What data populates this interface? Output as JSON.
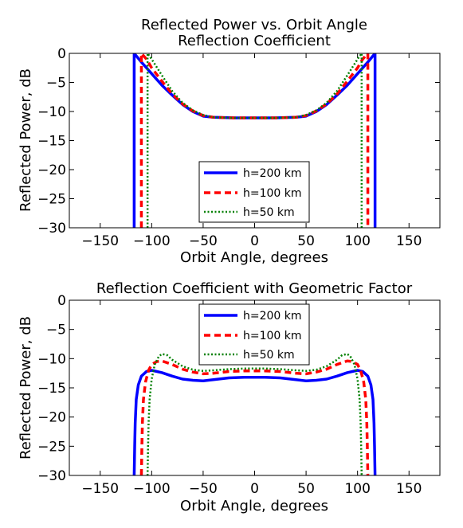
{
  "chart_data": [
    {
      "type": "line",
      "title": "Reflected Power vs. Orbit Angle",
      "subtitle": "Reflection Coefficient",
      "xlabel": "Orbit Angle, degrees",
      "ylabel": "Reflected Power, dB",
      "xlim": [
        -180,
        180
      ],
      "ylim": [
        -30,
        0
      ],
      "xticks": [
        -150,
        -100,
        -50,
        0,
        50,
        100,
        150
      ],
      "yticks": [
        0,
        -5,
        -10,
        -15,
        -20,
        -25,
        -30
      ],
      "grid": false,
      "legend_position": "lower-center",
      "series": [
        {
          "name": "h=200 km",
          "color": "#0000ff",
          "style": "solid",
          "points": [
            [
              -117,
              -30
            ],
            [
              -117,
              0
            ],
            [
              -110,
              -1.5
            ],
            [
              -100,
              -3.5
            ],
            [
              -90,
              -5.5
            ],
            [
              -80,
              -7.2
            ],
            [
              -70,
              -8.8
            ],
            [
              -60,
              -10.0
            ],
            [
              -50,
              -10.8
            ],
            [
              -40,
              -11.0
            ],
            [
              -20,
              -11.1
            ],
            [
              0,
              -11.1
            ],
            [
              20,
              -11.1
            ],
            [
              40,
              -11.0
            ],
            [
              50,
              -10.8
            ],
            [
              60,
              -10.0
            ],
            [
              70,
              -8.8
            ],
            [
              80,
              -7.2
            ],
            [
              90,
              -5.5
            ],
            [
              100,
              -3.5
            ],
            [
              110,
              -1.5
            ],
            [
              117,
              0
            ],
            [
              117,
              -30
            ]
          ]
        },
        {
          "name": "h=100 km",
          "color": "#ff0000",
          "style": "dashed",
          "points": [
            [
              -110,
              -30
            ],
            [
              -110,
              0
            ],
            [
              -105,
              -1.0
            ],
            [
              -100,
              -2.5
            ],
            [
              -90,
              -4.8
            ],
            [
              -80,
              -7.0
            ],
            [
              -70,
              -8.7
            ],
            [
              -60,
              -9.9
            ],
            [
              -50,
              -10.7
            ],
            [
              -40,
              -11.0
            ],
            [
              -20,
              -11.1
            ],
            [
              0,
              -11.1
            ],
            [
              20,
              -11.1
            ],
            [
              40,
              -11.0
            ],
            [
              50,
              -10.7
            ],
            [
              60,
              -9.9
            ],
            [
              70,
              -8.7
            ],
            [
              80,
              -7.0
            ],
            [
              90,
              -4.8
            ],
            [
              100,
              -2.5
            ],
            [
              105,
              -1.0
            ],
            [
              110,
              0
            ],
            [
              110,
              -30
            ]
          ]
        },
        {
          "name": "h=50 km",
          "color": "#008000",
          "style": "dotted",
          "points": [
            [
              -104,
              -30
            ],
            [
              -104,
              0
            ],
            [
              -100,
              -1.0
            ],
            [
              -90,
              -3.8
            ],
            [
              -80,
              -6.5
            ],
            [
              -70,
              -8.5
            ],
            [
              -60,
              -9.8
            ],
            [
              -50,
              -10.6
            ],
            [
              -40,
              -11.0
            ],
            [
              -20,
              -11.1
            ],
            [
              0,
              -11.1
            ],
            [
              20,
              -11.1
            ],
            [
              40,
              -11.0
            ],
            [
              50,
              -10.6
            ],
            [
              60,
              -9.8
            ],
            [
              70,
              -8.5
            ],
            [
              80,
              -6.5
            ],
            [
              90,
              -3.8
            ],
            [
              100,
              -1.0
            ],
            [
              104,
              0
            ],
            [
              104,
              -30
            ]
          ]
        }
      ]
    },
    {
      "type": "line",
      "title": "Reflection Coefficient with Geometric Factor",
      "xlabel": "Orbit Angle, degrees",
      "ylabel": "Reflected Power, dB",
      "xlim": [
        -180,
        180
      ],
      "ylim": [
        -30,
        0
      ],
      "xticks": [
        -150,
        -100,
        -50,
        0,
        50,
        100,
        150
      ],
      "yticks": [
        0,
        -5,
        -10,
        -15,
        -20,
        -25,
        -30
      ],
      "grid": false,
      "legend_position": "upper-center",
      "series": [
        {
          "name": "h=200 km",
          "color": "#0000ff",
          "style": "solid",
          "points": [
            [
              -117,
              -30
            ],
            [
              -116.5,
              -25
            ],
            [
              -116,
              -21
            ],
            [
              -115,
              -17
            ],
            [
              -113,
              -14.5
            ],
            [
              -110,
              -13.0
            ],
            [
              -105,
              -12.2
            ],
            [
              -100,
              -12.0
            ],
            [
              -90,
              -12.4
            ],
            [
              -80,
              -13.0
            ],
            [
              -70,
              -13.5
            ],
            [
              -60,
              -13.7
            ],
            [
              -50,
              -13.8
            ],
            [
              -40,
              -13.6
            ],
            [
              -25,
              -13.3
            ],
            [
              -10,
              -13.2
            ],
            [
              0,
              -13.2
            ],
            [
              10,
              -13.2
            ],
            [
              25,
              -13.3
            ],
            [
              40,
              -13.6
            ],
            [
              50,
              -13.8
            ],
            [
              60,
              -13.7
            ],
            [
              70,
              -13.5
            ],
            [
              80,
              -13.0
            ],
            [
              90,
              -12.4
            ],
            [
              100,
              -12.0
            ],
            [
              105,
              -12.2
            ],
            [
              110,
              -13.0
            ],
            [
              113,
              -14.5
            ],
            [
              115,
              -17
            ],
            [
              116,
              -21
            ],
            [
              116.5,
              -25
            ],
            [
              117,
              -30
            ]
          ]
        },
        {
          "name": "h=100 km",
          "color": "#ff0000",
          "style": "dashed",
          "points": [
            [
              -110,
              -30
            ],
            [
              -109.5,
              -25
            ],
            [
              -109,
              -21
            ],
            [
              -108,
              -17
            ],
            [
              -106,
              -14
            ],
            [
              -103,
              -12.0
            ],
            [
              -100,
              -11.0
            ],
            [
              -95,
              -10.5
            ],
            [
              -90,
              -10.4
            ],
            [
              -80,
              -11.0
            ],
            [
              -70,
              -11.8
            ],
            [
              -60,
              -12.3
            ],
            [
              -50,
              -12.6
            ],
            [
              -40,
              -12.5
            ],
            [
              -25,
              -12.2
            ],
            [
              -10,
              -12.1
            ],
            [
              0,
              -12.1
            ],
            [
              10,
              -12.1
            ],
            [
              25,
              -12.2
            ],
            [
              40,
              -12.5
            ],
            [
              50,
              -12.6
            ],
            [
              60,
              -12.3
            ],
            [
              70,
              -11.8
            ],
            [
              80,
              -11.0
            ],
            [
              90,
              -10.4
            ],
            [
              95,
              -10.5
            ],
            [
              100,
              -11.0
            ],
            [
              103,
              -12.0
            ],
            [
              106,
              -14
            ],
            [
              108,
              -17
            ],
            [
              109,
              -21
            ],
            [
              109.5,
              -25
            ],
            [
              110,
              -30
            ]
          ]
        },
        {
          "name": "h=50 km",
          "color": "#008000",
          "style": "dotted",
          "points": [
            [
              -104,
              -30
            ],
            [
              -103.5,
              -25
            ],
            [
              -103,
              -21
            ],
            [
              -102,
              -17
            ],
            [
              -100,
              -13.5
            ],
            [
              -97,
              -11.0
            ],
            [
              -93,
              -9.6
            ],
            [
              -90,
              -9.2
            ],
            [
              -85,
              -9.4
            ],
            [
              -80,
              -10.2
            ],
            [
              -70,
              -11.3
            ],
            [
              -60,
              -11.9
            ],
            [
              -50,
              -12.1
            ],
            [
              -40,
              -12.0
            ],
            [
              -25,
              -11.8
            ],
            [
              -10,
              -11.7
            ],
            [
              0,
              -11.7
            ],
            [
              10,
              -11.7
            ],
            [
              25,
              -11.8
            ],
            [
              40,
              -12.0
            ],
            [
              50,
              -12.1
            ],
            [
              60,
              -11.9
            ],
            [
              70,
              -11.3
            ],
            [
              80,
              -10.2
            ],
            [
              85,
              -9.4
            ],
            [
              90,
              -9.2
            ],
            [
              93,
              -9.6
            ],
            [
              97,
              -11.0
            ],
            [
              100,
              -13.5
            ],
            [
              102,
              -17
            ],
            [
              103,
              -21
            ],
            [
              103.5,
              -25
            ],
            [
              104,
              -30
            ]
          ]
        }
      ]
    }
  ]
}
